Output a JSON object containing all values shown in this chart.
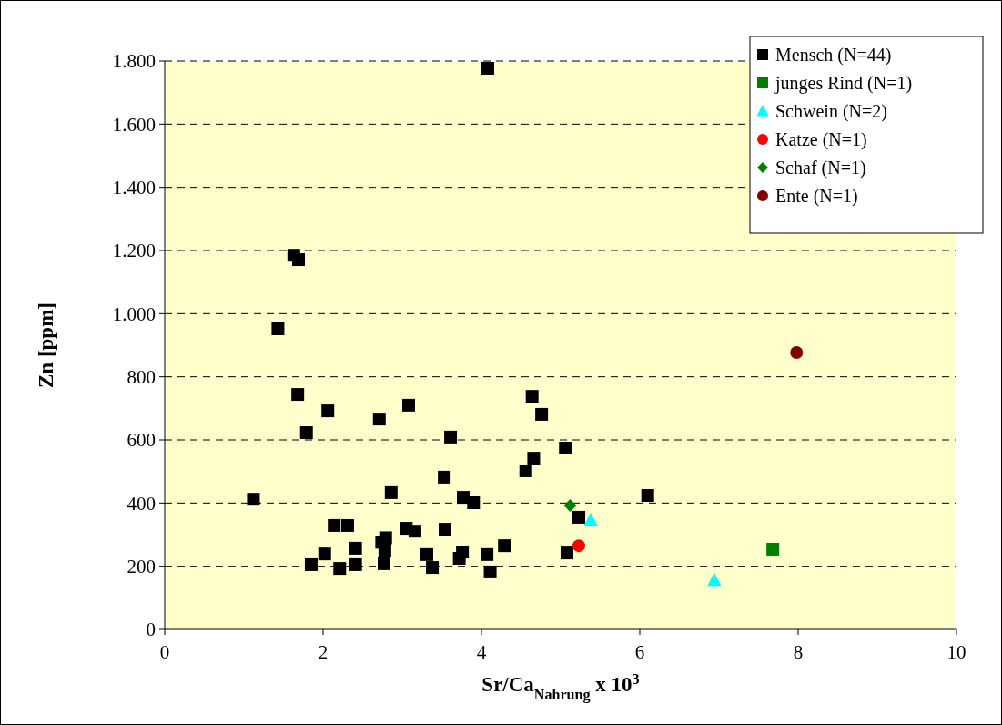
{
  "chart_data": {
    "type": "scatter",
    "xlabel": "Sr/Ca$_{Nahrung}$ x 10$^{3}$",
    "ylabel": "Zn [ppm]",
    "xlim": [
      0,
      10
    ],
    "xticks": [
      0,
      2,
      4,
      6,
      8,
      10
    ],
    "ylim": [
      0,
      1800
    ],
    "yticks": [
      0,
      200,
      400,
      600,
      800,
      {
        "value": 1000,
        "label": "1.000"
      },
      {
        "value": 1200,
        "label": "1.200"
      },
      {
        "value": 1400,
        "label": "1.400"
      },
      {
        "value": 1600,
        "label": "1.600"
      },
      {
        "value": 1800,
        "label": "1.800"
      }
    ],
    "grid": "y",
    "legend": "top right",
    "series": [
      {
        "name": "Mensch (N=44)",
        "color": "#000000",
        "marker": "square",
        "x": [
          4.08,
          1.63,
          1.69,
          1.43,
          1.68,
          2.06,
          2.71,
          3.08,
          1.79,
          3.61,
          1.12,
          2.86,
          3.53,
          3.77,
          3.9,
          2.14,
          2.31,
          3.05,
          3.16,
          3.54,
          2.02,
          2.41,
          1.85,
          2.21,
          2.41,
          2.79,
          2.74,
          2.78,
          2.77,
          3.31,
          3.38,
          3.76,
          3.72,
          4.07,
          4.11,
          4.29,
          4.64,
          4.76,
          5.06,
          4.66,
          4.56,
          6.1,
          5.23,
          5.08
        ],
        "values": [
          1777,
          1185,
          1171,
          952,
          744,
          692,
          666,
          710,
          623,
          609,
          412,
          433,
          482,
          418,
          401,
          329,
          329,
          320,
          311,
          317,
          239,
          257,
          205,
          193,
          205,
          290,
          276,
          251,
          208,
          237,
          196,
          245,
          225,
          237,
          182,
          265,
          738,
          681,
          574,
          542,
          502,
          424,
          355,
          242
        ]
      },
      {
        "name": "junges Rind (N=1)",
        "color": "#008000",
        "marker": "square",
        "x": [
          7.68
        ],
        "values": [
          254
        ]
      },
      {
        "name": "Schwein (N=2)",
        "color": "#00ffff",
        "marker": "triangle",
        "x": [
          5.38,
          6.94
        ],
        "values": [
          346,
          156
        ]
      },
      {
        "name": "Katze (N=1)",
        "color": "#ff0000",
        "marker": "circle",
        "x": [
          5.23
        ],
        "values": [
          265
        ]
      },
      {
        "name": "Schaf (N=1)",
        "color": "#008000",
        "marker": "diamond",
        "x": [
          5.12
        ],
        "values": [
          392
        ]
      },
      {
        "name": "Ente (N=1)",
        "color": "#800000",
        "marker": "circle",
        "x": [
          7.98
        ],
        "values": [
          877
        ]
      }
    ]
  }
}
